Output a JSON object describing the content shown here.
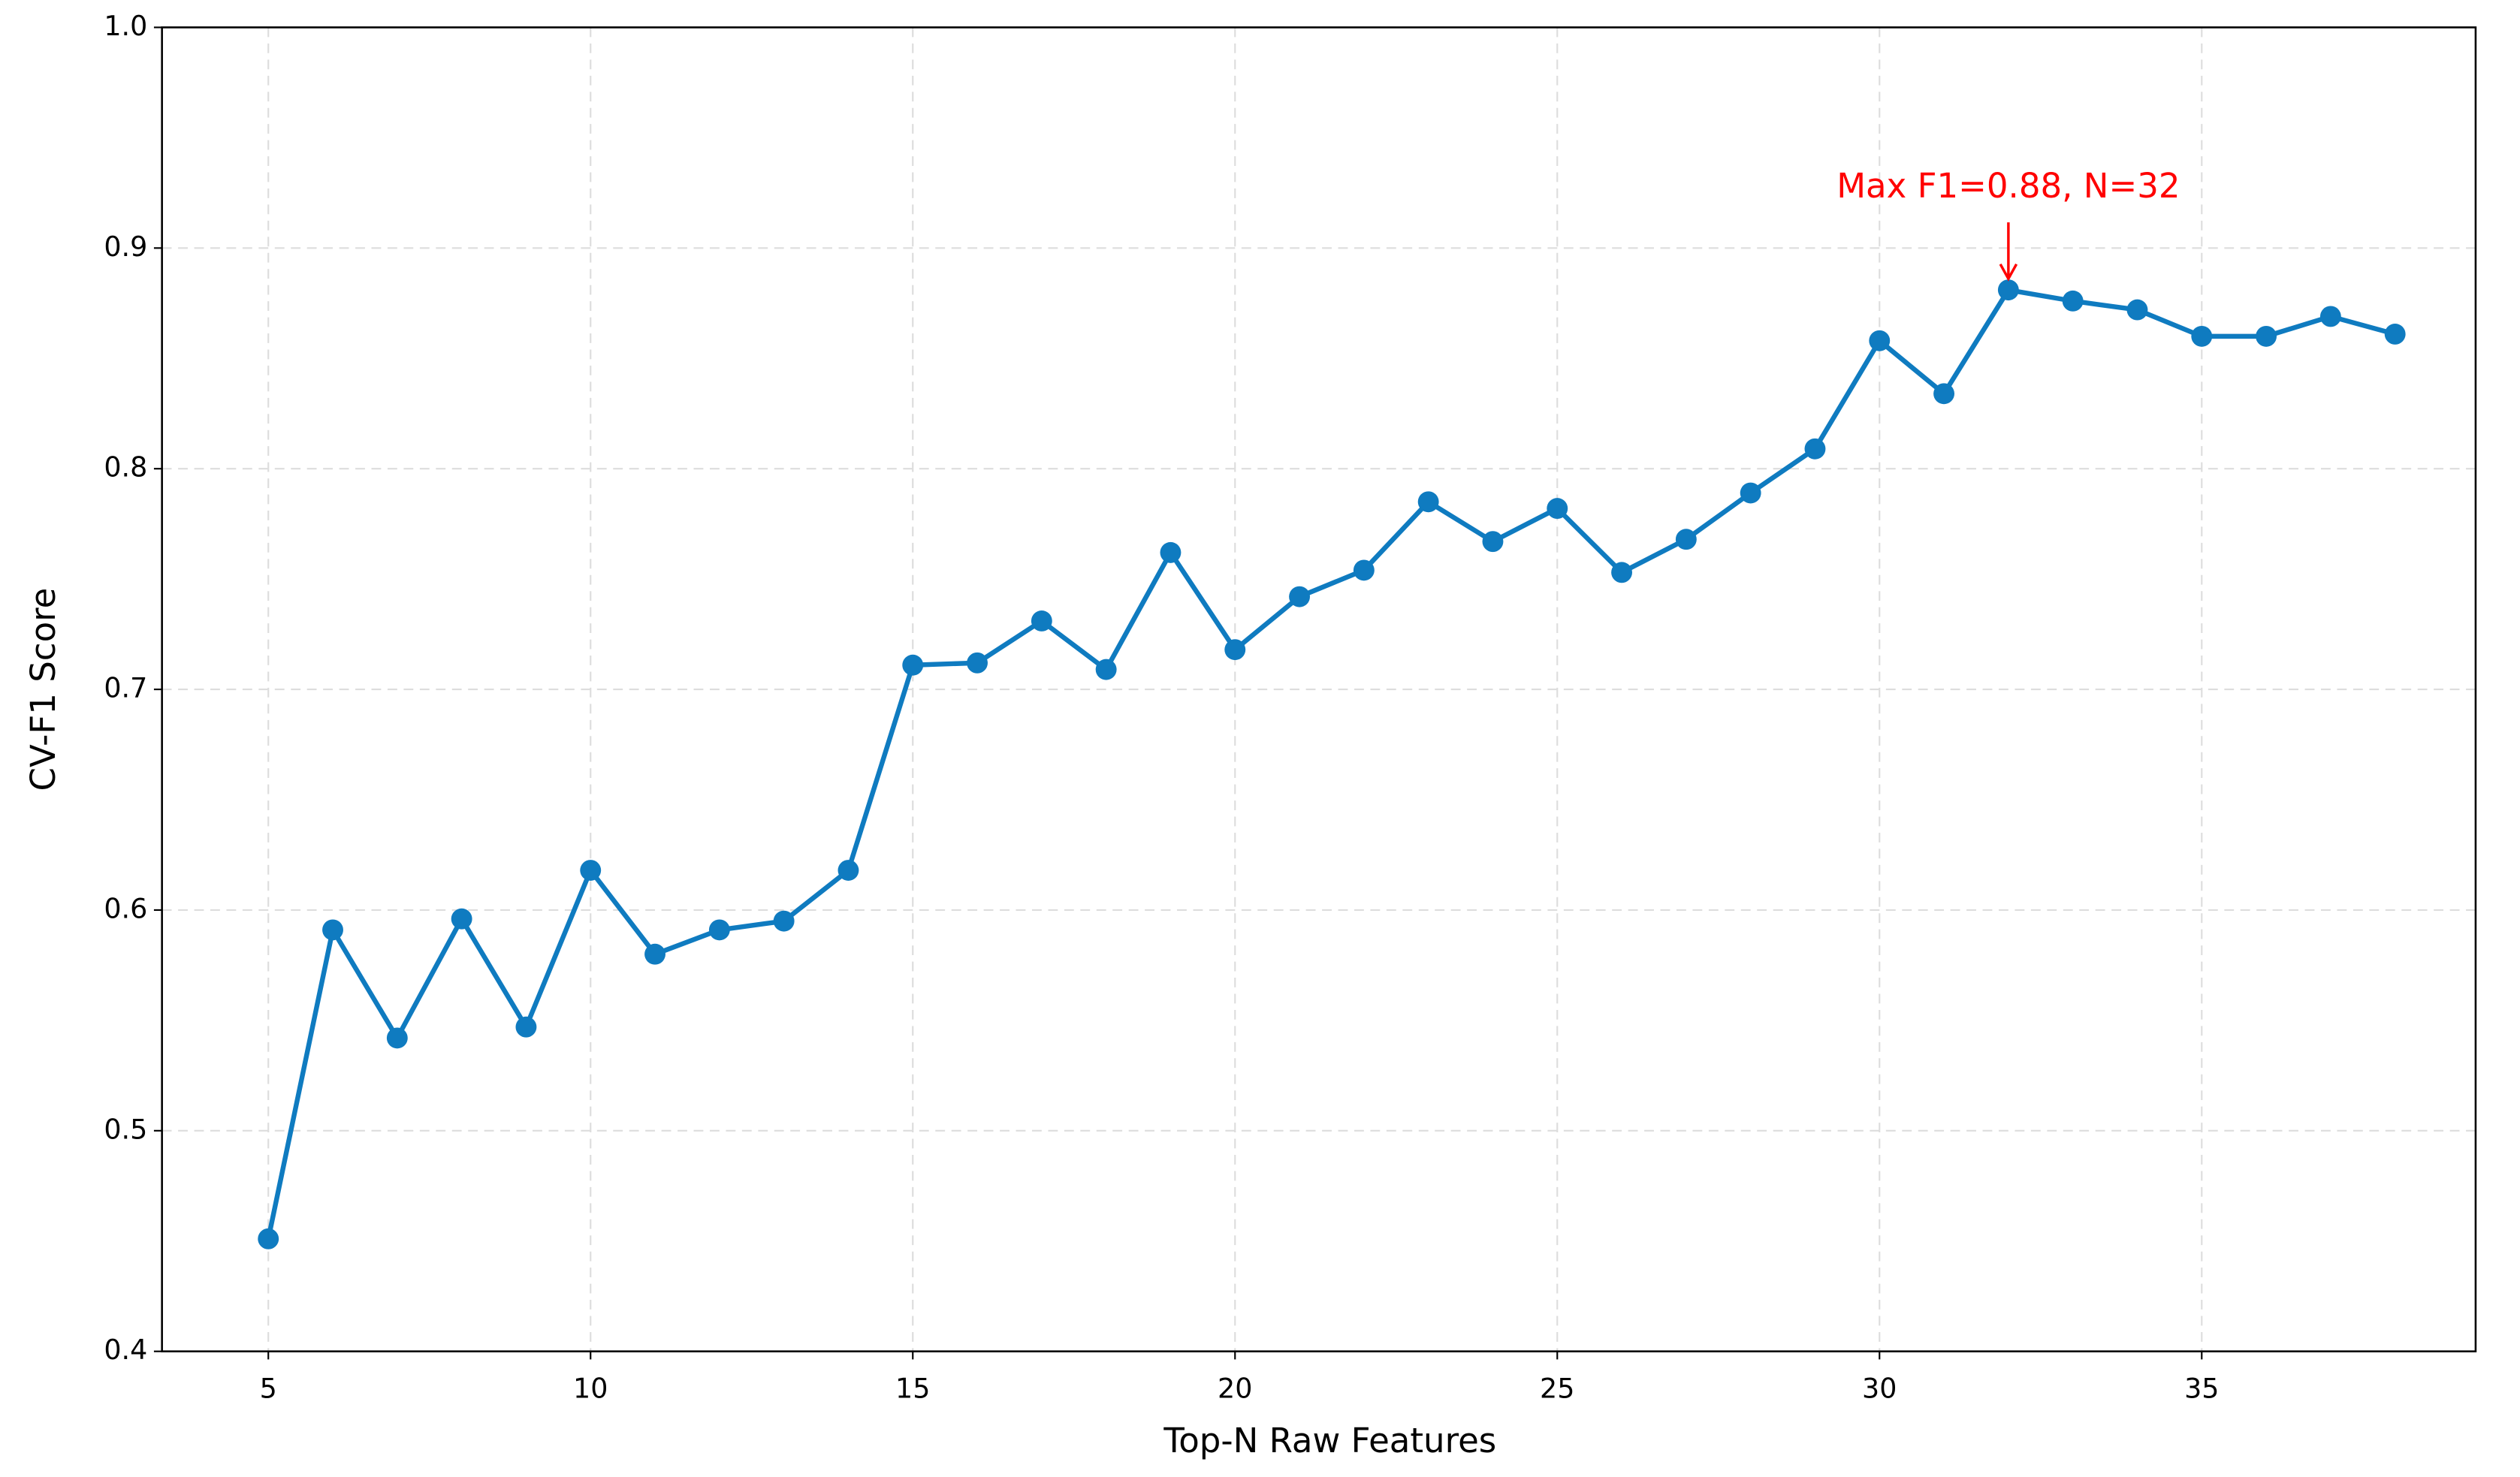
{
  "chart_data": {
    "type": "line",
    "xlabel": "Top-N Raw Features",
    "ylabel": "CV-F1 Score",
    "x": [
      5,
      6,
      7,
      8,
      9,
      10,
      11,
      12,
      13,
      14,
      15,
      16,
      17,
      18,
      19,
      20,
      21,
      22,
      23,
      24,
      25,
      26,
      27,
      28,
      29,
      30,
      31,
      32,
      33,
      34,
      35,
      36,
      37,
      38
    ],
    "series": [
      {
        "color": "#0f7bc0",
        "values": [
          0.451,
          0.591,
          0.542,
          0.596,
          0.547,
          0.618,
          0.58,
          0.591,
          0.595,
          0.618,
          0.711,
          0.712,
          0.731,
          0.709,
          0.762,
          0.718,
          0.742,
          0.754,
          0.785,
          0.767,
          0.782,
          0.753,
          0.768,
          0.789,
          0.809,
          0.858,
          0.834,
          0.881,
          0.876,
          0.872,
          0.86,
          0.86,
          0.869,
          0.861
        ]
      }
    ],
    "annotation": {
      "text": "Max F1=0.88, N=32",
      "color": "#ff0000"
    },
    "xlim": [
      3.35,
      39.25
    ],
    "ylim": [
      0.4,
      1.0
    ],
    "xticks": [
      5,
      10,
      15,
      20,
      25,
      30,
      35
    ],
    "yticks": [
      {
        "value": 0.4,
        "label": "0.4"
      },
      {
        "value": 0.5,
        "label": "0.5"
      },
      {
        "value": 0.6,
        "label": "0.6"
      },
      {
        "value": 0.7,
        "label": "0.7"
      },
      {
        "value": 0.8,
        "label": "0.8"
      },
      {
        "value": 0.9,
        "label": "0.9"
      },
      {
        "value": 1.0,
        "label": "1.0"
      }
    ],
    "grid": true
  }
}
